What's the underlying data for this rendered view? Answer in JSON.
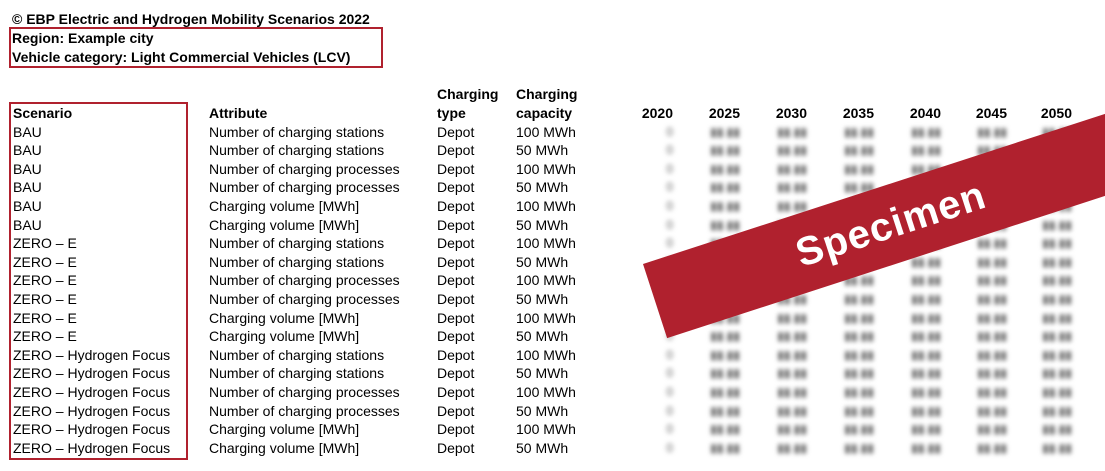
{
  "header": {
    "copyright": "© EBP Electric and Hydrogen Mobility Scenarios 2022",
    "region": "Region: Example city",
    "vehicle_category": "Vehicle category: Light Commercial Vehicles (LCV)"
  },
  "columns": {
    "scenario": "Scenario",
    "attribute": "Attribute",
    "charging_type_1": "Charging",
    "charging_type_2": "type",
    "charging_capacity_1": "Charging",
    "charging_capacity_2": "capacity",
    "years": [
      "2020",
      "2025",
      "2030",
      "2035",
      "2040",
      "2045",
      "2050"
    ]
  },
  "rows": [
    {
      "scenario": "BAU",
      "attribute": "Number of charging stations",
      "type": "Depot",
      "capacity": "100 MWh"
    },
    {
      "scenario": "BAU",
      "attribute": "Number of charging stations",
      "type": "Depot",
      "capacity": "50 MWh"
    },
    {
      "scenario": "BAU",
      "attribute": "Number of charging processes",
      "type": "Depot",
      "capacity": "100 MWh"
    },
    {
      "scenario": "BAU",
      "attribute": "Number of charging processes",
      "type": "Depot",
      "capacity": "50 MWh"
    },
    {
      "scenario": "BAU",
      "attribute": "Charging volume [MWh]",
      "type": "Depot",
      "capacity": "100 MWh"
    },
    {
      "scenario": "BAU",
      "attribute": "Charging volume [MWh]",
      "type": "Depot",
      "capacity": "50 MWh"
    },
    {
      "scenario": "ZERO – E",
      "attribute": "Number of charging stations",
      "type": "Depot",
      "capacity": "100 MWh"
    },
    {
      "scenario": "ZERO – E",
      "attribute": "Number of charging stations",
      "type": "Depot",
      "capacity": "50 MWh"
    },
    {
      "scenario": "ZERO – E",
      "attribute": "Number of charging processes",
      "type": "Depot",
      "capacity": "100 MWh"
    },
    {
      "scenario": "ZERO – E",
      "attribute": "Number of charging processes",
      "type": "Depot",
      "capacity": "50 MWh"
    },
    {
      "scenario": "ZERO – E",
      "attribute": "Charging volume [MWh]",
      "type": "Depot",
      "capacity": "100 MWh"
    },
    {
      "scenario": "ZERO – E",
      "attribute": "Charging volume [MWh]",
      "type": "Depot",
      "capacity": "50 MWh"
    },
    {
      "scenario": "ZERO – Hydrogen Focus",
      "attribute": "Number of charging stations",
      "type": "Depot",
      "capacity": "100 MWh"
    },
    {
      "scenario": "ZERO – Hydrogen Focus",
      "attribute": "Number of charging stations",
      "type": "Depot",
      "capacity": "50 MWh"
    },
    {
      "scenario": "ZERO – Hydrogen Focus",
      "attribute": "Number of charging processes",
      "type": "Depot",
      "capacity": "100 MWh"
    },
    {
      "scenario": "ZERO – Hydrogen Focus",
      "attribute": "Number of charging processes",
      "type": "Depot",
      "capacity": "50 MWh"
    },
    {
      "scenario": "ZERO – Hydrogen Focus",
      "attribute": "Charging volume [MWh]",
      "type": "Depot",
      "capacity": "100 MWh"
    },
    {
      "scenario": "ZERO – Hydrogen Focus",
      "attribute": "Charging volume [MWh]",
      "type": "Depot",
      "capacity": "50 MWh"
    }
  ],
  "stamp": {
    "text": "Specimen",
    "color": "#b0212e"
  }
}
